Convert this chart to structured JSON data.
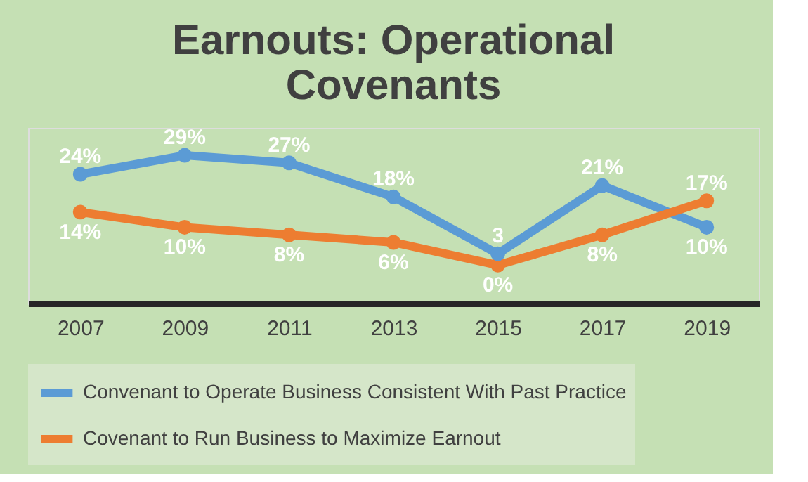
{
  "chart_data": {
    "type": "line",
    "title": "Earnouts: Operational Covenants",
    "categories": [
      "2007",
      "2009",
      "2011",
      "2013",
      "2015",
      "2017",
      "2019"
    ],
    "series": [
      {
        "name": "Convenant to Operate Business Consistent With Past Practice",
        "color": "#5b9bd5",
        "values": [
          24,
          29,
          27,
          18,
          3,
          21,
          10
        ],
        "value_labels": [
          "24%",
          "29%",
          "27%",
          "18%",
          "3",
          "21%",
          "10%"
        ]
      },
      {
        "name": "Covenant to Run Business to Maximize Earnout",
        "color": "#ed7d31",
        "values": [
          14,
          10,
          8,
          6,
          0,
          8,
          17
        ],
        "value_labels": [
          "14%",
          "10%",
          "8%",
          "6%",
          "0%",
          "8%",
          "17%"
        ]
      }
    ],
    "marker": "circle",
    "legend": "bottom",
    "grid": false
  }
}
